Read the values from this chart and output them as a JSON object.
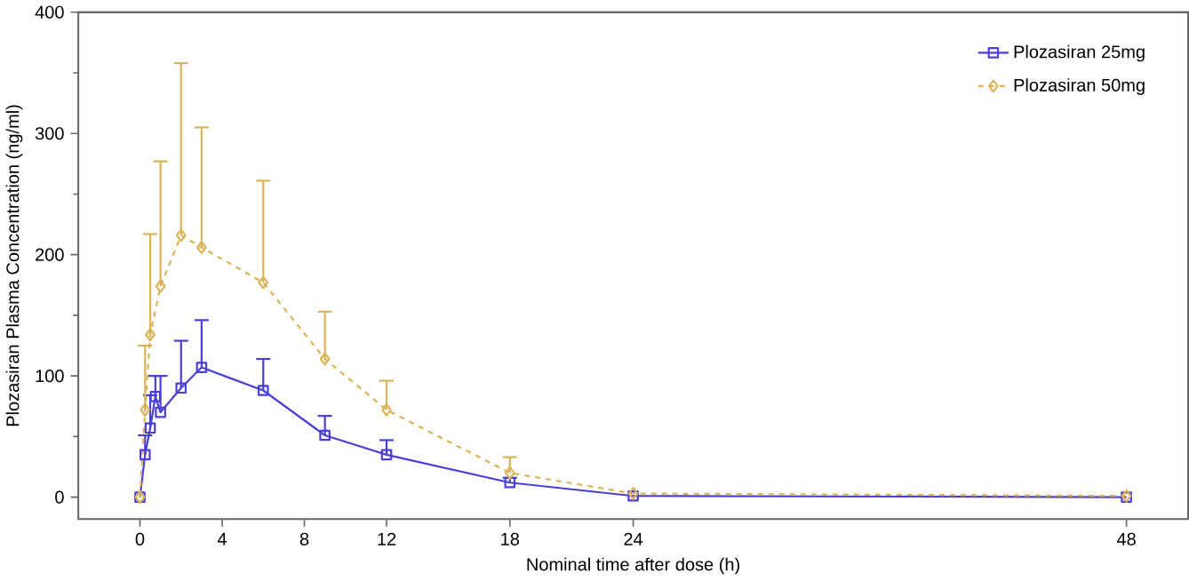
{
  "chart_data": {
    "type": "line",
    "xlabel": "Nominal time after dose (h)",
    "ylabel": "Plozasiran Plasma Concentration (ng/ml)",
    "xlim": [
      -3,
      51
    ],
    "xticks": [
      0,
      4,
      8,
      12,
      18,
      24,
      48
    ],
    "ylim": [
      -18,
      400
    ],
    "yticks": [
      0,
      100,
      200,
      300,
      400
    ],
    "legend": "top right",
    "grid": false,
    "series": [
      {
        "name": "Plozasiran 25mg",
        "color": "#4b3fd4",
        "marker": "square",
        "line_style": "solid",
        "x": [
          0,
          0.25,
          0.5,
          0.75,
          1,
          2,
          3,
          6,
          9,
          12,
          18,
          24,
          48
        ],
        "values": [
          0,
          35,
          57,
          83,
          70,
          90,
          107,
          88,
          51,
          35,
          12,
          1,
          0
        ],
        "errors": [
          null,
          [
            35,
            51
          ],
          [
            57,
            84
          ],
          [
            83,
            100
          ],
          [
            70,
            100
          ],
          [
            90,
            129
          ],
          [
            107,
            146
          ],
          [
            88,
            114
          ],
          [
            51,
            67
          ],
          [
            35,
            47
          ],
          [
            12,
            16
          ],
          null,
          null
        ]
      },
      {
        "name": "Plozasiran 50mg",
        "color": "#d9b45a",
        "marker": "diamond",
        "line_style": "dashed",
        "x": [
          0,
          0.25,
          0.5,
          1,
          2,
          3,
          6,
          9,
          12,
          18,
          24,
          48
        ],
        "values": [
          0,
          72,
          134,
          174,
          216,
          206,
          177,
          114,
          72,
          20,
          3,
          1
        ],
        "errors": [
          null,
          [
            72,
            125
          ],
          [
            134,
            217
          ],
          [
            174,
            277
          ],
          [
            216,
            358
          ],
          [
            206,
            305
          ],
          [
            177,
            261
          ],
          [
            114,
            153
          ],
          [
            72,
            96
          ],
          [
            20,
            33
          ],
          null,
          null
        ]
      }
    ]
  }
}
